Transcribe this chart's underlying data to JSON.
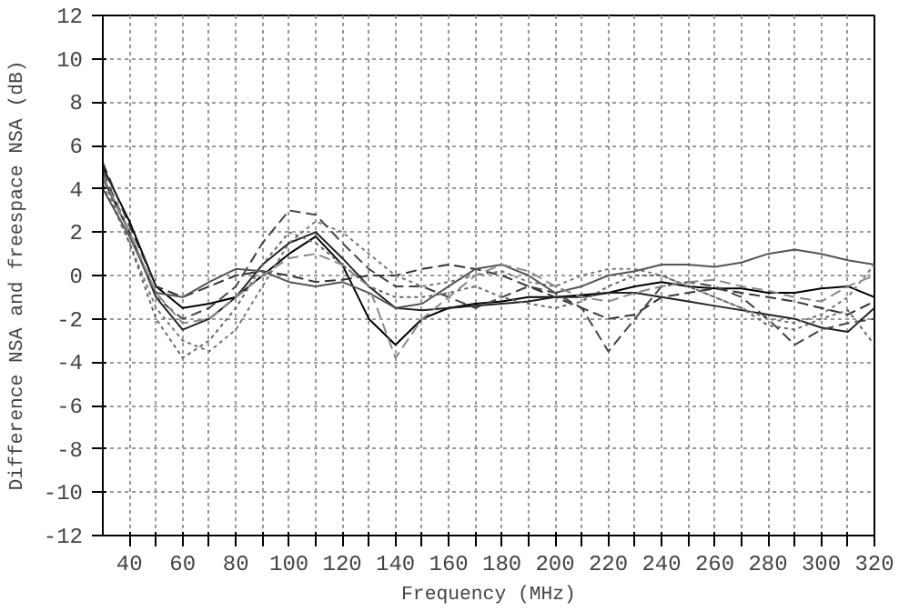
{
  "chart_data": {
    "type": "line",
    "xlabel": "Frequency (MHz)",
    "ylabel": "Difference NSA and freespace NSA (dB)",
    "x": [
      30,
      40,
      50,
      60,
      70,
      80,
      90,
      100,
      110,
      120,
      130,
      140,
      150,
      160,
      170,
      180,
      190,
      200,
      210,
      220,
      230,
      240,
      250,
      260,
      270,
      280,
      290,
      300,
      310,
      320
    ],
    "xlim": [
      30,
      320
    ],
    "xticks": [
      40,
      {
        "value": 50,
        "label": null
      },
      60,
      {
        "value": 70,
        "label": null
      },
      80,
      {
        "value": 90,
        "label": null
      },
      100,
      {
        "value": 110,
        "label": null
      },
      120,
      {
        "value": 130,
        "label": null
      },
      140,
      {
        "value": 150,
        "label": null
      },
      160,
      {
        "value": 170,
        "label": null
      },
      180,
      {
        "value": 190,
        "label": null
      },
      200,
      {
        "value": 210,
        "label": null
      },
      220,
      {
        "value": 230,
        "label": null
      },
      240,
      {
        "value": 250,
        "label": null
      },
      260,
      {
        "value": 270,
        "label": null
      },
      280,
      {
        "value": 290,
        "label": null
      },
      300,
      {
        "value": 310,
        "label": null
      },
      320
    ],
    "ylim": [
      -12,
      12
    ],
    "yticks": [
      -12,
      -10,
      -8,
      -6,
      -4,
      -2,
      0,
      2,
      4,
      6,
      8,
      10,
      12
    ],
    "grid": true,
    "marker": "none",
    "series": [
      {
        "color": "#000000",
        "line_style": "solid",
        "values": [
          5,
          2.5,
          -0.5,
          -1.5,
          -1.3,
          -1,
          0,
          1,
          1.8,
          0.5,
          -2,
          -3.2,
          -2,
          -1.5,
          -1.3,
          -1.2,
          -1,
          -1,
          -0.9,
          -0.8,
          -0.5,
          -0.3,
          -0.5,
          -0.6,
          -0.6,
          -0.8,
          -0.8,
          -0.6,
          -0.5,
          -1
        ]
      },
      {
        "color": "#222222",
        "line_style": "solid",
        "values": [
          4.5,
          2,
          -1,
          -2.5,
          -2,
          -1,
          0.5,
          1.5,
          2,
          0.8,
          -0.5,
          -1.5,
          -1.6,
          -1.5,
          -1.4,
          -1.3,
          -1.2,
          -1,
          -1,
          -0.8,
          -0.8,
          -1,
          -1.2,
          -1.4,
          -1.6,
          -1.8,
          -2,
          -2.4,
          -2.6,
          -1.5
        ]
      },
      {
        "color": "#333333",
        "line_style": "dashed",
        "values": [
          5.2,
          2.3,
          -0.5,
          -1,
          -0.5,
          0,
          0.2,
          0,
          -0.3,
          -0.2,
          0,
          0,
          0.3,
          0.5,
          0.3,
          0,
          -0.5,
          -1,
          -1.5,
          -2,
          -1.8,
          -1,
          -0.8,
          -0.6,
          -0.8,
          -1,
          -1.2,
          -1.5,
          -1.8,
          -1.2
        ]
      },
      {
        "color": "#777777",
        "line_style": "dotted",
        "values": [
          4.2,
          1.5,
          -1.5,
          -3,
          -3.5,
          -2.5,
          -0.5,
          1.5,
          2.5,
          2,
          1,
          0,
          -0.5,
          -0.3,
          0,
          0.2,
          -0.3,
          -0.5,
          0,
          0.3,
          0.3,
          0,
          -0.5,
          -1,
          -1.5,
          -2,
          -2.2,
          -1.8,
          -1,
          0.5
        ]
      },
      {
        "color": "#444444",
        "line_style": "dashed",
        "values": [
          4.8,
          2,
          -1,
          -2,
          -1.5,
          -0.5,
          1.5,
          3,
          2.8,
          1.5,
          0.3,
          -0.5,
          -0.5,
          -1,
          -1.5,
          -1,
          -0.5,
          -0.8,
          -1.5,
          -3.5,
          -2,
          -0.5,
          -0.3,
          -0.5,
          -1,
          -2,
          -3.2,
          -2.5,
          -2.2,
          -2
        ]
      },
      {
        "color": "#555555",
        "line_style": "solid",
        "values": [
          4,
          1.8,
          -0.8,
          -1,
          -0.3,
          0.3,
          0.2,
          -0.3,
          -0.5,
          -0.3,
          -0.8,
          -1.5,
          -1.3,
          -0.5,
          0.3,
          0.5,
          0,
          -0.8,
          -0.5,
          0,
          0.2,
          0.5,
          0.5,
          0.4,
          0.6,
          1,
          1.2,
          1,
          0.7,
          0.5
        ]
      },
      {
        "color": "#666666",
        "line_style": "dotted",
        "values": [
          4.5,
          1.5,
          -2,
          -3.8,
          -3,
          -1.5,
          0.5,
          2,
          1.5,
          0.5,
          -0.5,
          -1,
          -1,
          -0.8,
          -0.5,
          -1,
          -1.3,
          -1.5,
          -1.2,
          -0.5,
          0,
          0,
          -0.5,
          -1,
          -1.5,
          -2.3,
          -2.5,
          -2,
          -1.6,
          -3.2
        ]
      },
      {
        "color": "#888888",
        "line_style": "dashed",
        "values": [
          4.6,
          2,
          -0.8,
          -2.2,
          -2,
          -1,
          0,
          0.8,
          1,
          0.5,
          -0.5,
          -3.8,
          -2,
          -1,
          0,
          0.5,
          0.2,
          -0.5,
          -1,
          -1.2,
          -0.8,
          -0.5,
          -0.3,
          -0.2,
          -0.5,
          -0.7,
          -1,
          -1.2,
          -0.5,
          0
        ]
      }
    ]
  }
}
